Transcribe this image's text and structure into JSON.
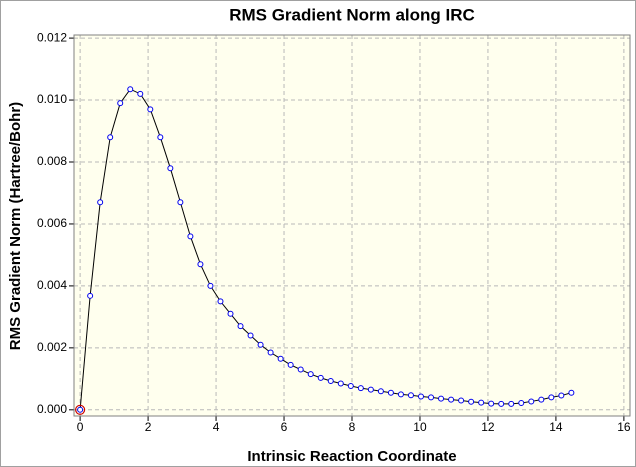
{
  "chart_data": {
    "type": "line",
    "title": "RMS Gradient Norm along IRC",
    "x_label": "Intrinsic Reaction Coordinate",
    "y_label": "RMS Gradient Norm (Hartree/Bohr)",
    "x": [
      0,
      0.295,
      0.59,
      0.885,
      1.18,
      1.475,
      1.77,
      2.065,
      2.36,
      2.655,
      2.95,
      3.245,
      3.54,
      3.835,
      4.13,
      4.425,
      4.72,
      5.015,
      5.31,
      5.605,
      5.9,
      6.195,
      6.49,
      6.785,
      7.08,
      7.375,
      7.67,
      7.965,
      8.26,
      8.555,
      8.85,
      9.145,
      9.44,
      9.735,
      10.03,
      10.325,
      10.62,
      10.915,
      11.21,
      11.505,
      11.8,
      12.095,
      12.39,
      12.685,
      12.98,
      13.275,
      13.57,
      13.865,
      14.16,
      14.455
    ],
    "series": [
      {
        "name": "RMS Gradient Norm",
        "color": "#0000ee",
        "values": [
          0,
          0.00368,
          0.0067,
          0.0088,
          0.0099,
          0.01035,
          0.0102,
          0.0097,
          0.0088,
          0.0078,
          0.0067,
          0.0056,
          0.0047,
          0.004,
          0.0035,
          0.0031,
          0.0027,
          0.0024,
          0.0021,
          0.00185,
          0.00165,
          0.00145,
          0.0013,
          0.00115,
          0.00103,
          0.00093,
          0.00085,
          0.00077,
          0.0007,
          0.00065,
          0.0006,
          0.00055,
          0.0005,
          0.00047,
          0.00043,
          0.0004,
          0.00036,
          0.00033,
          0.0003,
          0.00026,
          0.00023,
          0.0002,
          0.00019,
          0.00019,
          0.00022,
          0.00027,
          0.00033,
          0.0004,
          0.00046,
          0.00055
        ]
      }
    ],
    "line_color": "#000000",
    "highlight": {
      "index": 0,
      "color": "#cc0000"
    },
    "background": "#ffffee",
    "xlim": [
      -0.18,
      16.18
    ],
    "ylim": [
      -0.0002,
      0.0121
    ],
    "xticks": [
      0,
      2,
      4,
      6,
      8,
      10,
      12,
      14,
      16
    ],
    "yticks": [
      {
        "value": 0,
        "label": "0.000"
      },
      {
        "value": 0.002,
        "label": "0.002"
      },
      {
        "value": 0.004,
        "label": "0.004"
      },
      {
        "value": 0.006,
        "label": "0.006"
      },
      {
        "value": 0.008,
        "label": "0.008"
      },
      {
        "value": 0.01,
        "label": "0.010"
      },
      {
        "value": 0.012,
        "label": "0.012"
      }
    ],
    "grid": true
  }
}
